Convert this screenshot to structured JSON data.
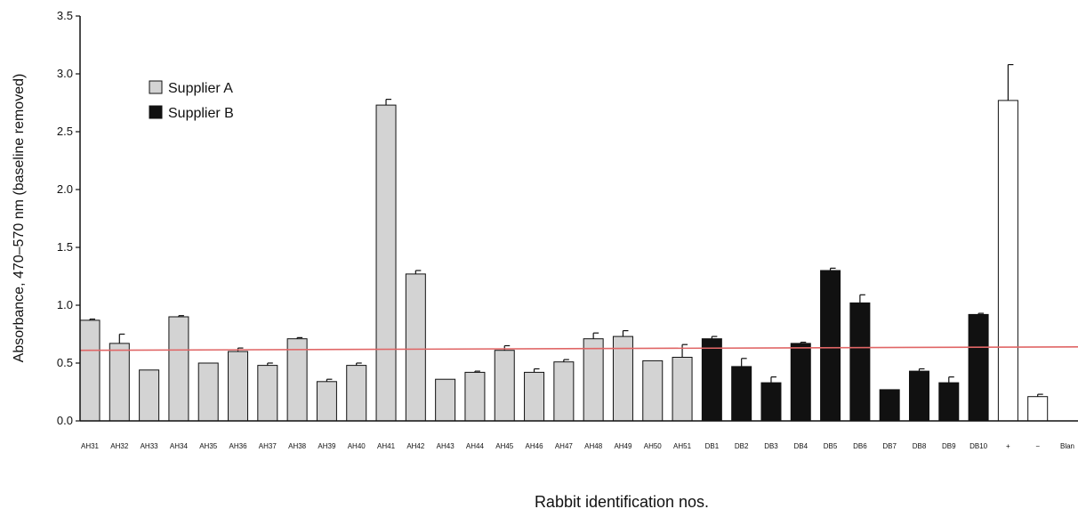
{
  "chart_data": {
    "type": "bar",
    "title": "",
    "xlabel": "Rabbit identification nos.",
    "ylabel": "Absorbance, 470–570 nm (baseline removed)",
    "ylim": [
      0,
      3.5
    ],
    "yticks": [
      "0.0",
      "0.5",
      "1.0",
      "1.5",
      "2.0",
      "2.5",
      "3.0",
      "3.5"
    ],
    "grid": false,
    "legend_position": "top-left",
    "categories": [
      "AH31",
      "AH32",
      "AH33",
      "AH34",
      "AH35",
      "AH36",
      "AH37",
      "AH38",
      "AH39",
      "AH40",
      "AH41",
      "AH42",
      "AH43",
      "AH44",
      "AH45",
      "AH46",
      "AH47",
      "AH48",
      "AH49",
      "AH50",
      "AH51",
      "DB1",
      "DB2",
      "DB3",
      "DB4",
      "DB5",
      "DB6",
      "DB7",
      "DB8",
      "DB9",
      "DB10",
      "+",
      "−",
      "Blan"
    ],
    "values": [
      0.87,
      0.67,
      0.44,
      0.9,
      0.5,
      0.6,
      0.48,
      0.71,
      0.34,
      0.48,
      2.73,
      1.27,
      0.36,
      0.42,
      0.61,
      0.42,
      0.51,
      0.71,
      0.73,
      0.52,
      0.55,
      0.71,
      0.47,
      0.33,
      0.67,
      1.3,
      1.02,
      0.27,
      0.43,
      0.33,
      0.92,
      2.77,
      0.21,
      0.0
    ],
    "errors": [
      0.01,
      0.08,
      0.0,
      0.01,
      0.0,
      0.03,
      0.02,
      0.01,
      0.02,
      0.02,
      0.05,
      0.03,
      0.0,
      0.01,
      0.04,
      0.03,
      0.02,
      0.05,
      0.05,
      0.0,
      0.11,
      0.02,
      0.07,
      0.05,
      0.01,
      0.02,
      0.07,
      0.0,
      0.02,
      0.05,
      0.01,
      0.31,
      0.02,
      0.0
    ],
    "groups": [
      "A",
      "A",
      "A",
      "A",
      "A",
      "A",
      "A",
      "A",
      "A",
      "A",
      "A",
      "A",
      "A",
      "A",
      "A",
      "A",
      "A",
      "A",
      "A",
      "A",
      "A",
      "B",
      "B",
      "B",
      "B",
      "B",
      "B",
      "B",
      "B",
      "B",
      "B",
      "C",
      "C",
      "C"
    ],
    "group_colors": {
      "A": "#d3d3d3",
      "B": "#111111",
      "C": "#ffffff"
    },
    "legend": [
      {
        "label": "Supplier A",
        "group": "A"
      },
      {
        "label": "Supplier B",
        "group": "B"
      }
    ],
    "reference_line": {
      "y_start": 0.61,
      "y_end": 0.64,
      "color": "#e06666"
    }
  }
}
